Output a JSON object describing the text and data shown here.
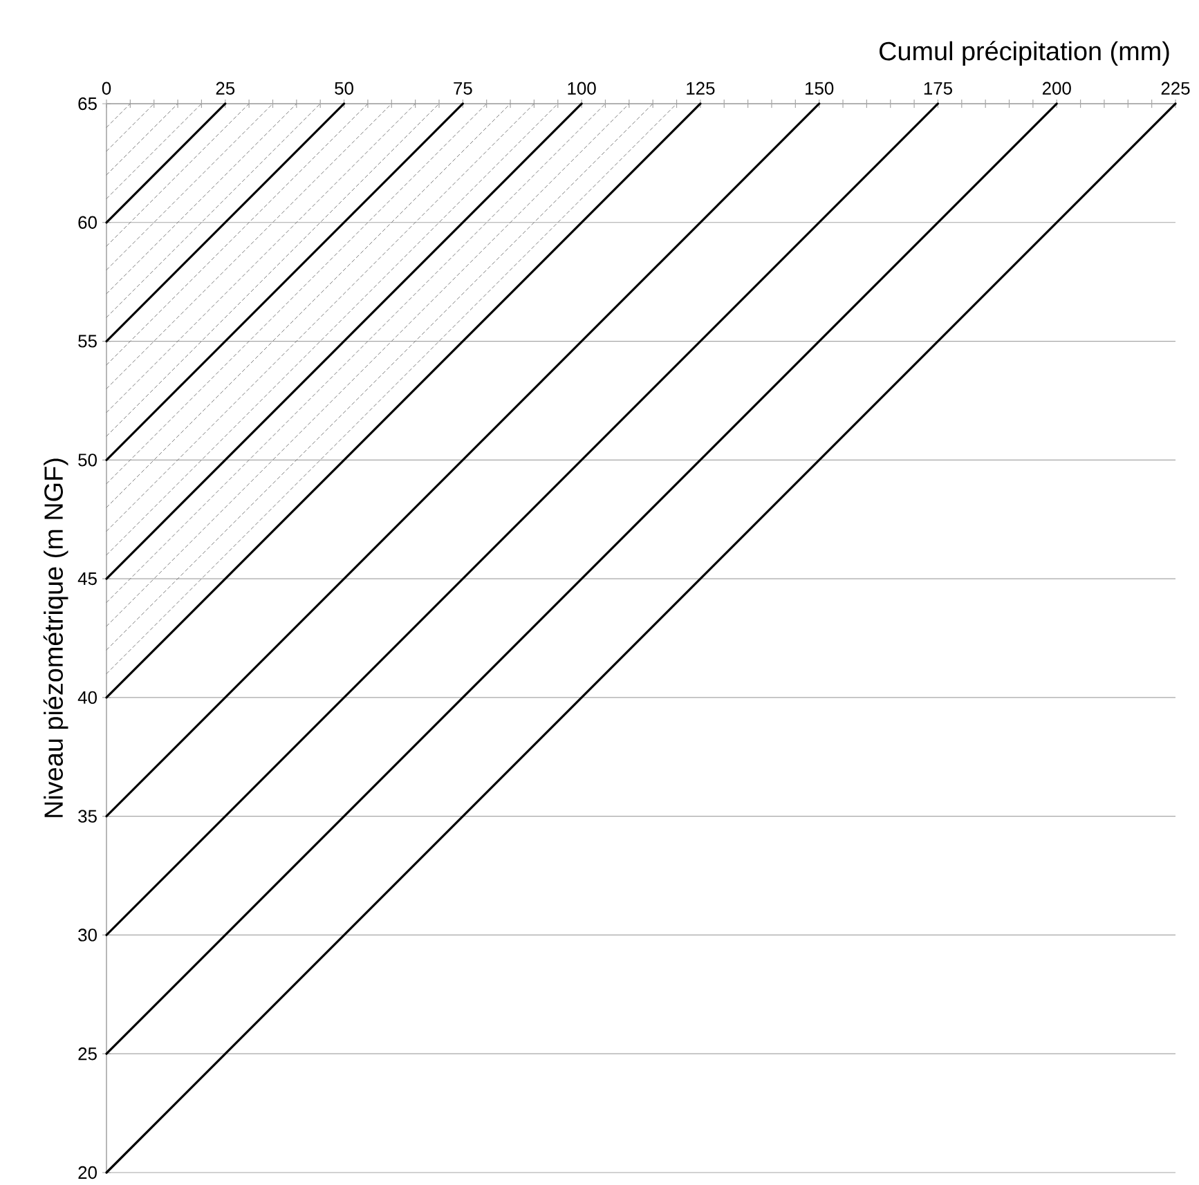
{
  "chart_data": {
    "type": "line",
    "xlabel": "Cumul précipitation (mm)",
    "ylabel": "Niveau piézométrique (m NGF)",
    "xlim": [
      0,
      225
    ],
    "ylim": [
      20,
      65
    ],
    "xticks": [
      0,
      {
        "value": 5,
        "label": null
      },
      {
        "value": 10,
        "label": null
      },
      {
        "value": 15,
        "label": null
      },
      {
        "value": 20,
        "label": null
      },
      25,
      {
        "value": 30,
        "label": null
      },
      {
        "value": 35,
        "label": null
      },
      {
        "value": 40,
        "label": null
      },
      {
        "value": 45,
        "label": null
      },
      50,
      {
        "value": 55,
        "label": null
      },
      {
        "value": 60,
        "label": null
      },
      {
        "value": 65,
        "label": null
      },
      {
        "value": 70,
        "label": null
      },
      75,
      {
        "value": 80,
        "label": null
      },
      {
        "value": 85,
        "label": null
      },
      {
        "value": 90,
        "label": null
      },
      {
        "value": 95,
        "label": null
      },
      100,
      {
        "value": 105,
        "label": null
      },
      {
        "value": 110,
        "label": null
      },
      {
        "value": 115,
        "label": null
      },
      {
        "value": 120,
        "label": null
      },
      125,
      {
        "value": 130,
        "label": null
      },
      {
        "value": 135,
        "label": null
      },
      {
        "value": 140,
        "label": null
      },
      {
        "value": 145,
        "label": null
      },
      150,
      {
        "value": 155,
        "label": null
      },
      {
        "value": 160,
        "label": null
      },
      {
        "value": 165,
        "label": null
      },
      {
        "value": 170,
        "label": null
      },
      175,
      {
        "value": 180,
        "label": null
      },
      {
        "value": 185,
        "label": null
      },
      {
        "value": 190,
        "label": null
      },
      {
        "value": 195,
        "label": null
      },
      200,
      {
        "value": 205,
        "label": null
      },
      {
        "value": 210,
        "label": null
      },
      {
        "value": 215,
        "label": null
      },
      {
        "value": 220,
        "label": null
      },
      225
    ],
    "yticks": [
      20,
      25,
      30,
      35,
      40,
      45,
      50,
      55,
      60,
      65
    ],
    "grid": "y",
    "marker": "none",
    "series": [
      {
        "color": "#808080",
        "line_style": "dashed",
        "x": [
          0,
          120
        ],
        "values": [
          41,
          65
        ]
      },
      {
        "color": "#808080",
        "line_style": "dashed",
        "x": [
          0,
          115
        ],
        "values": [
          42,
          65
        ]
      },
      {
        "color": "#808080",
        "line_style": "dashed",
        "x": [
          0,
          110
        ],
        "values": [
          43,
          65
        ]
      },
      {
        "color": "#808080",
        "line_style": "dashed",
        "x": [
          0,
          105
        ],
        "values": [
          44,
          65
        ]
      },
      {
        "color": "#808080",
        "line_style": "dashed",
        "x": [
          0,
          95
        ],
        "values": [
          46,
          65
        ]
      },
      {
        "color": "#808080",
        "line_style": "dashed",
        "x": [
          0,
          90
        ],
        "values": [
          47,
          65
        ]
      },
      {
        "color": "#808080",
        "line_style": "dashed",
        "x": [
          0,
          85
        ],
        "values": [
          48,
          65
        ]
      },
      {
        "color": "#808080",
        "line_style": "dashed",
        "x": [
          0,
          80
        ],
        "values": [
          49,
          65
        ]
      },
      {
        "color": "#808080",
        "line_style": "dashed",
        "x": [
          0,
          70
        ],
        "values": [
          51,
          65
        ]
      },
      {
        "color": "#808080",
        "line_style": "dashed",
        "x": [
          0,
          65
        ],
        "values": [
          52,
          65
        ]
      },
      {
        "color": "#808080",
        "line_style": "dashed",
        "x": [
          0,
          60
        ],
        "values": [
          53,
          65
        ]
      },
      {
        "color": "#808080",
        "line_style": "dashed",
        "x": [
          0,
          55
        ],
        "values": [
          54,
          65
        ]
      },
      {
        "color": "#808080",
        "line_style": "dashed",
        "x": [
          0,
          45
        ],
        "values": [
          56,
          65
        ]
      },
      {
        "color": "#808080",
        "line_style": "dashed",
        "x": [
          0,
          40
        ],
        "values": [
          57,
          65
        ]
      },
      {
        "color": "#808080",
        "line_style": "dashed",
        "x": [
          0,
          35
        ],
        "values": [
          58,
          65
        ]
      },
      {
        "color": "#808080",
        "line_style": "dashed",
        "x": [
          0,
          30
        ],
        "values": [
          59,
          65
        ]
      },
      {
        "color": "#808080",
        "line_style": "dashed",
        "x": [
          0,
          20
        ],
        "values": [
          61,
          65
        ]
      },
      {
        "color": "#808080",
        "line_style": "dashed",
        "x": [
          0,
          15
        ],
        "values": [
          62,
          65
        ]
      },
      {
        "color": "#808080",
        "line_style": "dashed",
        "x": [
          0,
          10
        ],
        "values": [
          63,
          65
        ]
      },
      {
        "color": "#808080",
        "line_style": "dashed",
        "x": [
          0,
          5
        ],
        "values": [
          64,
          65
        ]
      },
      {
        "color": "#000000",
        "line_style": "solid",
        "x": [
          0,
          225
        ],
        "values": [
          20,
          65
        ]
      },
      {
        "color": "#000000",
        "line_style": "solid",
        "x": [
          0,
          200
        ],
        "values": [
          25,
          65
        ]
      },
      {
        "color": "#000000",
        "line_style": "solid",
        "x": [
          0,
          175
        ],
        "values": [
          30,
          65
        ]
      },
      {
        "color": "#000000",
        "line_style": "solid",
        "x": [
          0,
          150
        ],
        "values": [
          35,
          65
        ]
      },
      {
        "color": "#000000",
        "line_style": "solid",
        "x": [
          0,
          125
        ],
        "values": [
          40,
          65
        ]
      },
      {
        "color": "#000000",
        "line_style": "solid",
        "x": [
          0,
          100
        ],
        "values": [
          45,
          65
        ]
      },
      {
        "color": "#000000",
        "line_style": "solid",
        "x": [
          0,
          75
        ],
        "values": [
          50,
          65
        ]
      },
      {
        "color": "#000000",
        "line_style": "solid",
        "x": [
          0,
          50
        ],
        "values": [
          55,
          65
        ]
      },
      {
        "color": "#000000",
        "line_style": "solid",
        "x": [
          0,
          25
        ],
        "values": [
          60,
          65
        ]
      }
    ]
  }
}
